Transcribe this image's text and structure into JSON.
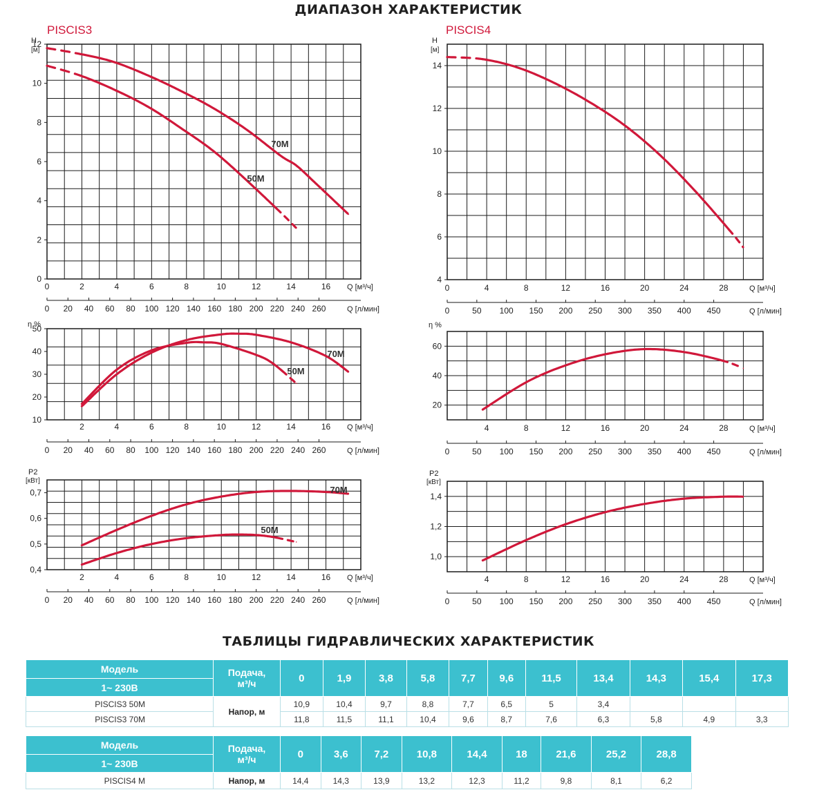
{
  "titles": {
    "range": "ДИАПАЗОН ХАРАКТЕРИСТИК",
    "tables": "ТАБЛИЦЫ ГИДРАВЛИЧЕСКИХ ХАРАКТЕРИСТИК"
  },
  "colors": {
    "curve": "#d0183a",
    "grid": "#1a1a1a",
    "header": "#3cc0cf",
    "model_title": "#d0183a"
  },
  "chart_data": [
    {
      "id": "p3_head",
      "model_title": "PISCIS3",
      "type": "line",
      "ylabel": "H",
      "yunit": "[м]",
      "ylim": [
        0,
        12
      ],
      "yticks": [
        0,
        2,
        4,
        6,
        8,
        10,
        12
      ],
      "xlabel": "Q [м³/ч]",
      "xlim": [
        0,
        18
      ],
      "xticks": [
        0,
        2,
        4,
        6,
        8,
        10,
        12,
        14,
        16
      ],
      "x2label": "Q [л/мин]",
      "x2ticks": [
        0,
        20,
        40,
        60,
        80,
        100,
        120,
        140,
        160,
        180,
        200,
        220,
        240,
        260
      ],
      "grid": true,
      "series": [
        {
          "name": "70M",
          "x": [
            0,
            1.9,
            3.8,
            5.8,
            7.7,
            9.6,
            11.5,
            13.4,
            14.3,
            15.4,
            17.3
          ],
          "y": [
            11.8,
            11.5,
            11.1,
            10.4,
            9.6,
            8.7,
            7.6,
            6.3,
            5.8,
            4.9,
            3.3
          ],
          "dashed_before": 1.9
        },
        {
          "name": "50M",
          "x": [
            0,
            1.9,
            3.8,
            5.8,
            7.7,
            9.6,
            11.5,
            13.4,
            14.3
          ],
          "y": [
            10.9,
            10.4,
            9.7,
            8.8,
            7.7,
            6.5,
            5.0,
            3.4,
            2.6
          ],
          "dashed_before": 1.9,
          "dashed_after": 13.2
        }
      ]
    },
    {
      "id": "p4_head",
      "model_title": "PISCIS4",
      "type": "line",
      "ylabel": "H",
      "yunit": "[м]",
      "ylim": [
        4,
        15
      ],
      "yticks": [
        4,
        6,
        8,
        10,
        12,
        14
      ],
      "xlabel": "Q [м³/ч]",
      "xlim": [
        0,
        32
      ],
      "xticks": [
        0,
        4,
        8,
        12,
        16,
        20,
        24,
        28
      ],
      "x2label": "Q [л/мин]",
      "x2ticks": [
        0,
        50,
        100,
        150,
        200,
        250,
        300,
        350,
        400,
        450
      ],
      "grid": true,
      "series": [
        {
          "name": "",
          "x": [
            0,
            3.6,
            7.2,
            10.8,
            14.4,
            18,
            21.6,
            25.2,
            28.8,
            30
          ],
          "y": [
            14.4,
            14.3,
            13.9,
            13.2,
            12.3,
            11.2,
            9.8,
            8.1,
            6.2,
            5.5
          ],
          "dashed_before": 3.6,
          "dashed_after": 28.5
        }
      ]
    },
    {
      "id": "p3_eff",
      "type": "line",
      "ylabel": "η %",
      "yunit": "",
      "ylim": [
        10,
        50
      ],
      "yticks": [
        10,
        20,
        30,
        40,
        50
      ],
      "xlabel": "Q [м³/ч]",
      "xlim": [
        0,
        18
      ],
      "xticks": [
        2,
        4,
        6,
        8,
        10,
        12,
        14,
        16
      ],
      "x2label": "Q [л/мин]",
      "x2ticks": [
        0,
        20,
        40,
        60,
        80,
        100,
        120,
        140,
        160,
        180,
        200,
        220,
        240,
        260
      ],
      "grid": true,
      "series": [
        {
          "name": "70M",
          "x": [
            2,
            4,
            6,
            8,
            10,
            11,
            12,
            14,
            16,
            17.3
          ],
          "y": [
            16,
            30,
            39.5,
            45,
            47.5,
            47.8,
            47.3,
            44,
            38,
            31
          ]
        },
        {
          "name": "50M",
          "x": [
            2,
            4,
            6,
            8,
            9,
            10,
            12,
            13,
            14.3
          ],
          "y": [
            17,
            32,
            40.5,
            43.8,
            44,
            43.3,
            38.5,
            34.5,
            26
          ],
          "dashed_after": 13.5
        }
      ]
    },
    {
      "id": "p4_eff",
      "type": "line",
      "ylabel": "η %",
      "yunit": "",
      "ylim": [
        10,
        70
      ],
      "yticks": [
        20,
        40,
        60
      ],
      "xlabel": "Q [м³/ч]",
      "xlim": [
        0,
        32
      ],
      "xticks": [
        4,
        8,
        12,
        16,
        20,
        24,
        28
      ],
      "x2label": "Q [л/мин]",
      "x2ticks": [
        0,
        50,
        100,
        150,
        200,
        250,
        300,
        350,
        400,
        450
      ],
      "grid": true,
      "series": [
        {
          "name": "",
          "x": [
            3.6,
            8,
            12,
            16,
            20,
            24,
            28,
            30
          ],
          "y": [
            17,
            35.5,
            47,
            54.5,
            58,
            56,
            50,
            45
          ],
          "dashed_after": 28
        }
      ]
    },
    {
      "id": "p3_power",
      "type": "line",
      "ylabel": "P2",
      "yunit": "[кВт]",
      "ylim": [
        0.4,
        0.75
      ],
      "yticks": [
        0.4,
        0.5,
        0.6,
        0.7
      ],
      "ytick_labels": [
        "0,4",
        "0,5",
        "0,6",
        "0,7"
      ],
      "xlabel": "Q [м³/ч]",
      "xlim": [
        0,
        18
      ],
      "xticks": [
        2,
        4,
        6,
        8,
        10,
        12,
        14,
        16
      ],
      "x2label": "Q [л/мин]",
      "x2ticks": [
        0,
        20,
        40,
        60,
        80,
        100,
        120,
        140,
        160,
        180,
        200,
        220,
        240,
        260
      ],
      "grid": true,
      "series": [
        {
          "name": "70M",
          "x": [
            2,
            4,
            6,
            8,
            10,
            12,
            14,
            16,
            17.3
          ],
          "y": [
            0.495,
            0.555,
            0.61,
            0.655,
            0.685,
            0.703,
            0.707,
            0.703,
            0.696
          ]
        },
        {
          "name": "50M",
          "x": [
            2,
            4,
            6,
            8,
            10,
            11,
            12,
            13,
            14.3
          ],
          "y": [
            0.42,
            0.465,
            0.5,
            0.523,
            0.535,
            0.537,
            0.535,
            0.527,
            0.508
          ],
          "dashed_after": 13.2
        }
      ]
    },
    {
      "id": "p4_power",
      "type": "line",
      "ylabel": "P2",
      "yunit": "[кВт]",
      "ylim": [
        0.9,
        1.5
      ],
      "yticks": [
        1.0,
        1.2,
        1.4
      ],
      "ytick_labels": [
        "1,0",
        "1,2",
        "1,4"
      ],
      "xlabel": "Q [м³/ч]",
      "xlim": [
        0,
        32
      ],
      "xticks": [
        4,
        8,
        12,
        16,
        20,
        24,
        28
      ],
      "x2label": "Q [л/мин]",
      "x2ticks": [
        0,
        50,
        100,
        150,
        200,
        250,
        300,
        350,
        400,
        450
      ],
      "grid": true,
      "series": [
        {
          "name": "",
          "x": [
            3.6,
            8,
            12,
            16,
            20,
            24,
            28,
            30
          ],
          "y": [
            0.975,
            1.11,
            1.215,
            1.295,
            1.35,
            1.385,
            1.398,
            1.398
          ]
        }
      ]
    }
  ],
  "tables": [
    {
      "model_label": "Модель",
      "voltage": "1~ 230В",
      "flow_label": "Подача,",
      "flow_unit": "м³/ч",
      "head_label": "Напор, м",
      "flows": [
        "0",
        "1,9",
        "3,8",
        "5,8",
        "7,7",
        "9,6",
        "11,5",
        "13,4",
        "14,3",
        "15,4",
        "17,3"
      ],
      "rows": [
        {
          "model": "PISCIS3 50M",
          "values": [
            "10,9",
            "10,4",
            "9,7",
            "8,8",
            "7,7",
            "6,5",
            "5",
            "3,4",
            "",
            "",
            ""
          ]
        },
        {
          "model": "PISCIS3 70M",
          "values": [
            "11,8",
            "11,5",
            "11,1",
            "10,4",
            "9,6",
            "8,7",
            "7,6",
            "6,3",
            "5,8",
            "4,9",
            "3,3"
          ]
        }
      ]
    },
    {
      "model_label": "Модель",
      "voltage": "1~ 230В",
      "flow_label": "Подача,",
      "flow_unit": "м³/ч",
      "head_label": "Напор, м",
      "flows": [
        "0",
        "3,6",
        "7,2",
        "10,8",
        "14,4",
        "18",
        "21,6",
        "25,2",
        "28,8"
      ],
      "rows": [
        {
          "model": "PISCIS4 M",
          "values": [
            "14,4",
            "14,3",
            "13,9",
            "13,2",
            "12,3",
            "11,2",
            "9,8",
            "8,1",
            "6,2"
          ]
        }
      ]
    }
  ]
}
